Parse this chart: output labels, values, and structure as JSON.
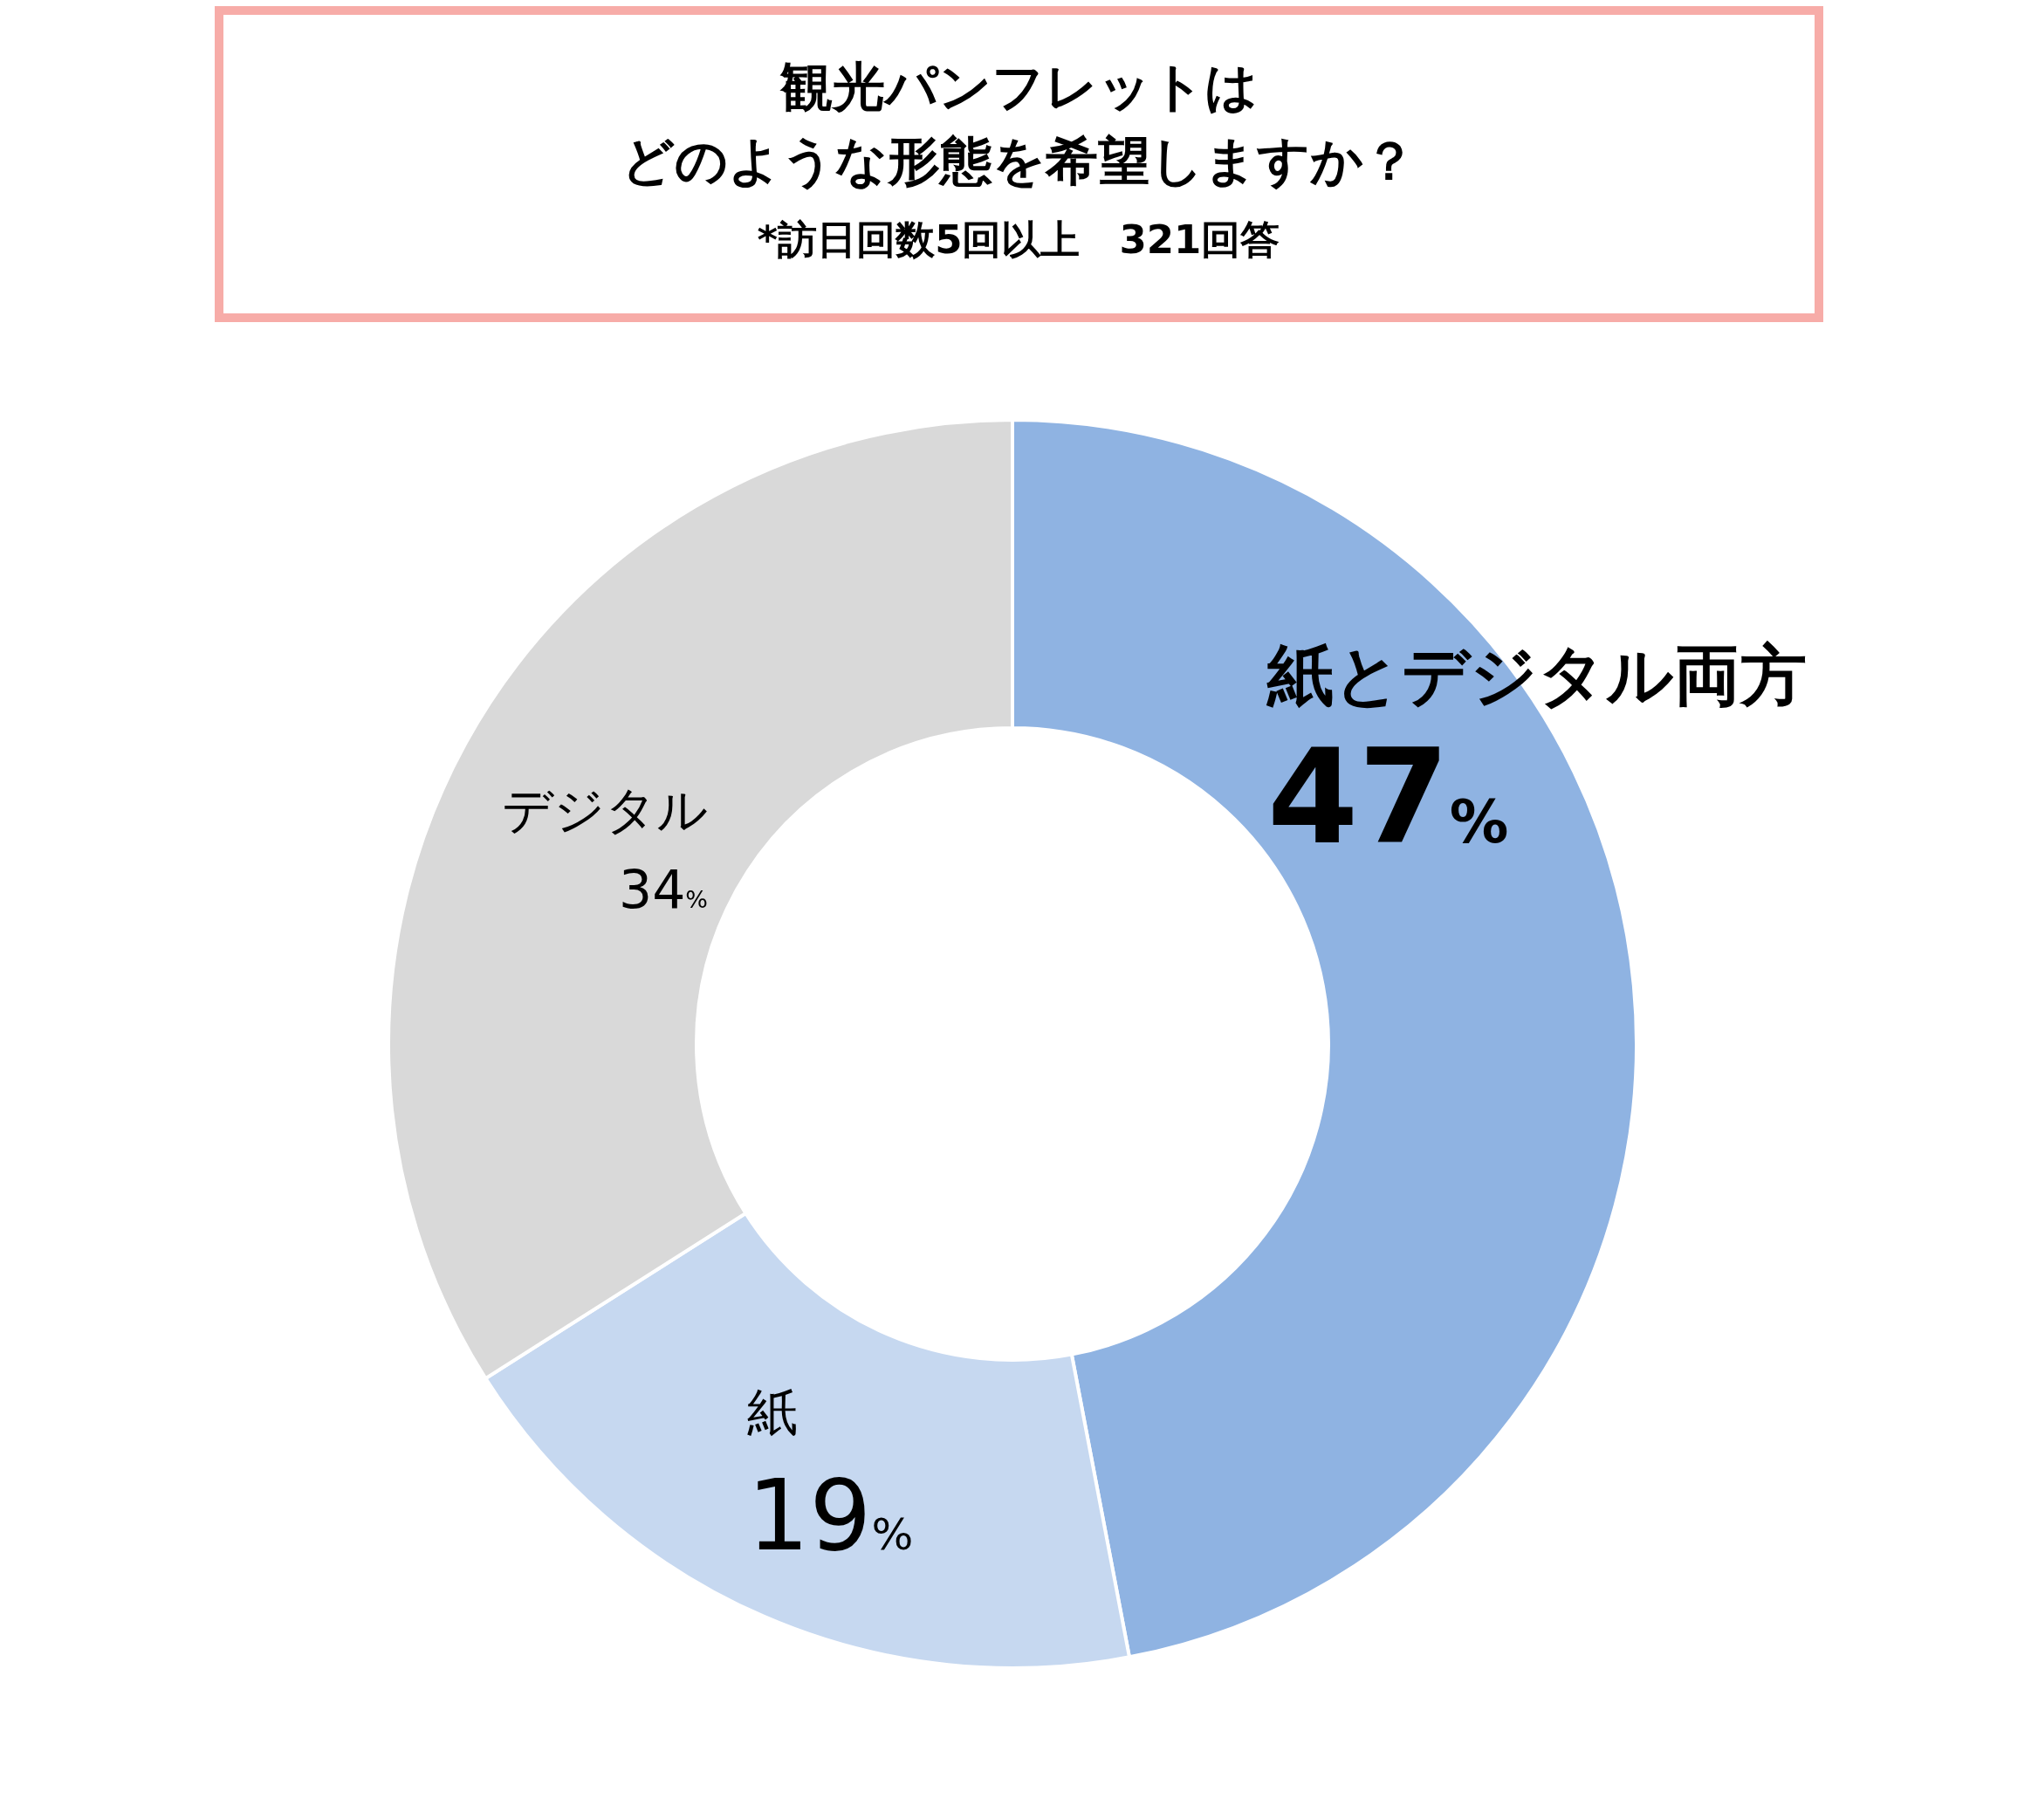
{
  "chart_data": {
    "type": "donut",
    "title": "観光パンフレットはどのような形態を希望しますか？",
    "subtitle": "*訪日回数5回以上　321回答",
    "categories": [
      "紙とデジタル両方",
      "紙",
      "デジタル"
    ],
    "values": [
      47,
      19,
      34
    ],
    "colors": [
      "#8fb3e2",
      "#c6d8f0",
      "#d9d9d9"
    ],
    "value_labels": [
      "47%",
      "19%",
      "34%"
    ]
  }
}
